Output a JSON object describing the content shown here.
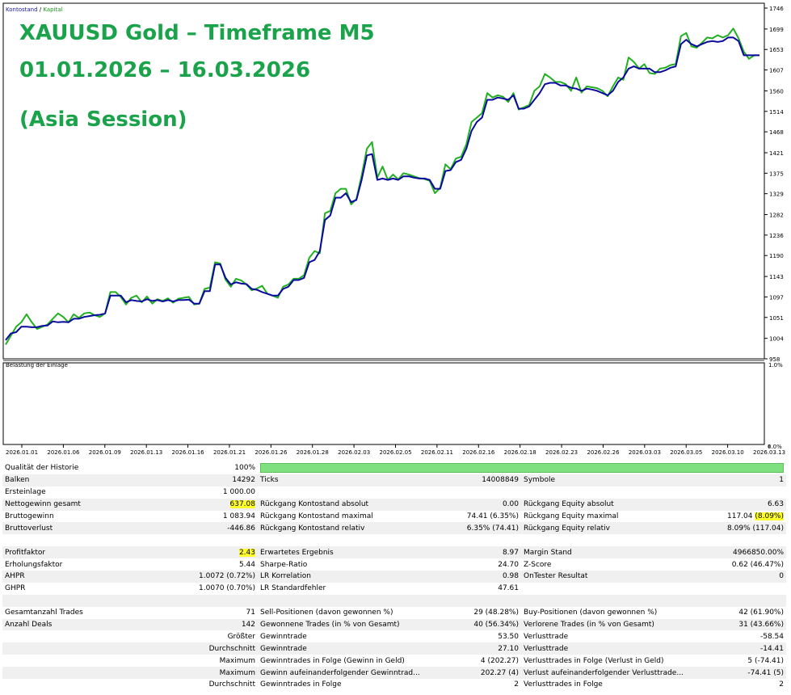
{
  "legend": {
    "balance": "Kontostand",
    "sep": " / ",
    "equity": "Kapital"
  },
  "overlay": {
    "line1": "XAUUSD Gold – Timeframe M5",
    "line2": "01.01.2026 – 16.03.2026",
    "line3": "(Asia Session)"
  },
  "colors": {
    "balance": "#0a0a9c",
    "equity": "#22b022",
    "overlay_text": "#1aa34a",
    "highlight": "#ffff2a",
    "quality_bar": "#7ee07e"
  },
  "sub_chart": {
    "label": "Belastung der Einlage",
    "y_top": "1.0%",
    "y_bottom": "0.0%"
  },
  "chart_data": {
    "type": "line",
    "y_ticks": [
      "1746",
      "1699",
      "1653",
      "1607",
      "1560",
      "1514",
      "1468",
      "1421",
      "1375",
      "1329",
      "1282",
      "1236",
      "1190",
      "1143",
      "1097",
      "1051",
      "1004",
      "958"
    ],
    "ylim": [
      958,
      1746
    ],
    "x_ticks": [
      "2026.01.01",
      "2026.01.06",
      "2026.01.09",
      "2026.01.13",
      "2026.01.16",
      "2026.01.21",
      "2026.01.26",
      "2026.01.28",
      "2026.02.03",
      "2026.02.05",
      "2026.02.11",
      "2026.02.16",
      "2026.02.18",
      "2026.02.23",
      "2026.02.26",
      "2026.03.03",
      "2026.03.05",
      "2026.03.10",
      "2026.03.13"
    ],
    "series": [
      {
        "name": "Kontostand",
        "values": [
          1000,
          1015,
          1018,
          1030,
          1030,
          1029,
          1029,
          1032,
          1033,
          1042,
          1040,
          1041,
          1040,
          1048,
          1048,
          1052,
          1054,
          1056,
          1057,
          1060,
          1100,
          1100,
          1100,
          1085,
          1090,
          1088,
          1087,
          1092,
          1088,
          1090,
          1087,
          1090,
          1087,
          1090,
          1090,
          1091,
          1082,
          1082,
          1110,
          1110,
          1170,
          1170,
          1140,
          1125,
          1130,
          1127,
          1126,
          1115,
          1113,
          1108,
          1104,
          1100,
          1100,
          1115,
          1120,
          1135,
          1135,
          1140,
          1175,
          1180,
          1200,
          1270,
          1280,
          1320,
          1320,
          1330,
          1310,
          1315,
          1360,
          1415,
          1418,
          1360,
          1363,
          1360,
          1363,
          1360,
          1368,
          1368,
          1365,
          1363,
          1363,
          1360,
          1340,
          1340,
          1380,
          1382,
          1400,
          1405,
          1430,
          1470,
          1490,
          1500,
          1540,
          1540,
          1545,
          1543,
          1540,
          1550,
          1520,
          1520,
          1525,
          1540,
          1555,
          1575,
          1578,
          1578,
          1572,
          1572,
          1567,
          1565,
          1560,
          1565,
          1563,
          1560,
          1555,
          1550,
          1560,
          1580,
          1590,
          1610,
          1615,
          1610,
          1610,
          1610,
          1602,
          1602,
          1606,
          1612,
          1615,
          1665,
          1675,
          1665,
          1660,
          1665,
          1670,
          1672,
          1670,
          1672,
          1680,
          1680,
          1672,
          1640,
          1640,
          1640,
          1640
        ],
        "color": "#0a0a9c"
      },
      {
        "name": "Kapital",
        "values": [
          990,
          1010,
          1030,
          1040,
          1058,
          1040,
          1025,
          1030,
          1035,
          1048,
          1060,
          1052,
          1040,
          1058,
          1050,
          1060,
          1062,
          1056,
          1052,
          1060,
          1108,
          1108,
          1097,
          1080,
          1095,
          1100,
          1085,
          1098,
          1082,
          1092,
          1088,
          1094,
          1084,
          1093,
          1095,
          1097,
          1080,
          1082,
          1115,
          1118,
          1175,
          1172,
          1136,
          1120,
          1138,
          1134,
          1125,
          1112,
          1116,
          1122,
          1104,
          1100,
          1095,
          1120,
          1125,
          1138,
          1138,
          1146,
          1185,
          1200,
          1195,
          1285,
          1290,
          1330,
          1340,
          1340,
          1305,
          1317,
          1370,
          1430,
          1445,
          1365,
          1390,
          1360,
          1372,
          1361,
          1375,
          1372,
          1368,
          1364,
          1362,
          1358,
          1330,
          1342,
          1395,
          1384,
          1408,
          1412,
          1440,
          1490,
          1500,
          1510,
          1555,
          1545,
          1550,
          1547,
          1535,
          1555,
          1518,
          1523,
          1528,
          1560,
          1570,
          1598,
          1590,
          1580,
          1580,
          1575,
          1560,
          1590,
          1556,
          1570,
          1568,
          1566,
          1560,
          1548,
          1570,
          1590,
          1585,
          1635,
          1625,
          1610,
          1620,
          1600,
          1598,
          1610,
          1612,
          1618,
          1620,
          1683,
          1690,
          1660,
          1657,
          1668,
          1680,
          1678,
          1685,
          1680,
          1685,
          1700,
          1678,
          1648,
          1632,
          1640,
          1640
        ],
        "color": "#22b022"
      }
    ]
  },
  "stats": {
    "rows": [
      {
        "shade": false,
        "c1l": "Qualität der Historie",
        "c1v": "100%",
        "bar": true
      },
      {
        "shade": true,
        "c1l": "Balken",
        "c1v": "14292",
        "c2l": "Ticks",
        "c2v": "14008849",
        "c3l": "Symbole",
        "c3v": "1"
      },
      {
        "shade": false,
        "c1l": "Ersteinlage",
        "c1v": "1 000.00"
      },
      {
        "shade": true,
        "c1l": "Nettogewinn gesamt",
        "c1v": "637.08",
        "c1hl": true,
        "c2l": "Rückgang Kontostand absolut",
        "c2v": "0.00",
        "c3l": "Rückgang Equity absolut",
        "c3v": "6.63"
      },
      {
        "shade": false,
        "c1l": "Bruttogewinn",
        "c1v": "1 083.94",
        "c2l": "Rückgang Kontostand maximal",
        "c2v": "74.41 (6.35%)",
        "c3l": "Rückgang Equity maximal",
        "c3v": "117.04",
        "c3v2": "(8.09%)"
      },
      {
        "shade": true,
        "c1l": "Bruttoverlust",
        "c1v": "-446.86",
        "c2l": "Rückgang Kontostand relativ",
        "c2v": "6.35% (74.41)",
        "c3l": "Rückgang Equity relativ",
        "c3v": "8.09% (117.04)"
      },
      {
        "shade": false
      },
      {
        "shade": true,
        "c1l": "Profitfaktor",
        "c1v": "2.43",
        "c1hl": true,
        "c2l": "Erwartetes Ergebnis",
        "c2v": "8.97",
        "c3l": "Margin Stand",
        "c3v": "4966850.00%"
      },
      {
        "shade": false,
        "c1l": "Erholungsfaktor",
        "c1v": "5.44",
        "c2l": "Sharpe-Ratio",
        "c2v": "24.70",
        "c3l": "Z-Score",
        "c3v": "0.62 (46.47%)"
      },
      {
        "shade": true,
        "c1l": "AHPR",
        "c1v": "1.0072 (0.72%)",
        "c2l": "LR Korrelation",
        "c2v": "0.98",
        "c3l": "OnTester Resultat",
        "c3v": "0"
      },
      {
        "shade": false,
        "c1l": "GHPR",
        "c1v": "1.0070 (0.70%)",
        "c2l": "LR Standardfehler",
        "c2v": "47.61"
      },
      {
        "shade": true
      },
      {
        "shade": false,
        "c1l": "Gesamtanzahl Trades",
        "c1v": "71",
        "c2l": "Sell-Positionen (davon gewonnen %)",
        "c2v": "29 (48.28%)",
        "c3l": "Buy-Positionen (davon gewonnen %)",
        "c3v": "42 (61.90%)"
      },
      {
        "shade": true,
        "c1l": "Anzahl Deals",
        "c1v": "142",
        "c2l": "Gewonnene Trades (in % von Gesamt)",
        "c2v": "40 (56.34%)",
        "c3l": "Verlorene Trades (in % von Gesamt)",
        "c3v": "31 (43.66%)"
      },
      {
        "shade": false,
        "c1l": "",
        "c1v": "Größter",
        "c2l": "Gewinntrade",
        "c2v": "53.50",
        "c3l": "Verlusttrade",
        "c3v": "-58.54"
      },
      {
        "shade": true,
        "c1l": "",
        "c1v": "Durchschnitt",
        "c2l": "Gewinntrade",
        "c2v": "27.10",
        "c3l": "Verlusttrade",
        "c3v": "-14.41"
      },
      {
        "shade": false,
        "c1l": "",
        "c1v": "Maximum",
        "c2l": "Gewinntrades in Folge (Gewinn in Geld)",
        "c2v": "4 (202.27)",
        "c3l": "Verlusttrades in Folge (Verlust in Geld)",
        "c3v": "5 (-74.41)"
      },
      {
        "shade": true,
        "c1l": "",
        "c1v": "Maximum",
        "c2l": "Gewinn aufeinanderfolgender Gewinntrad...",
        "c2v": "202.27 (4)",
        "c3l": "Verlust aufeinanderfolgender Verlusttrade...",
        "c3v": "-74.41 (5)"
      },
      {
        "shade": false,
        "c1l": "",
        "c1v": "Durchschnitt",
        "c2l": "Gewinntrades in Folge",
        "c2v": "2",
        "c3l": "Verlusttrades in Folge",
        "c3v": "2"
      }
    ]
  }
}
